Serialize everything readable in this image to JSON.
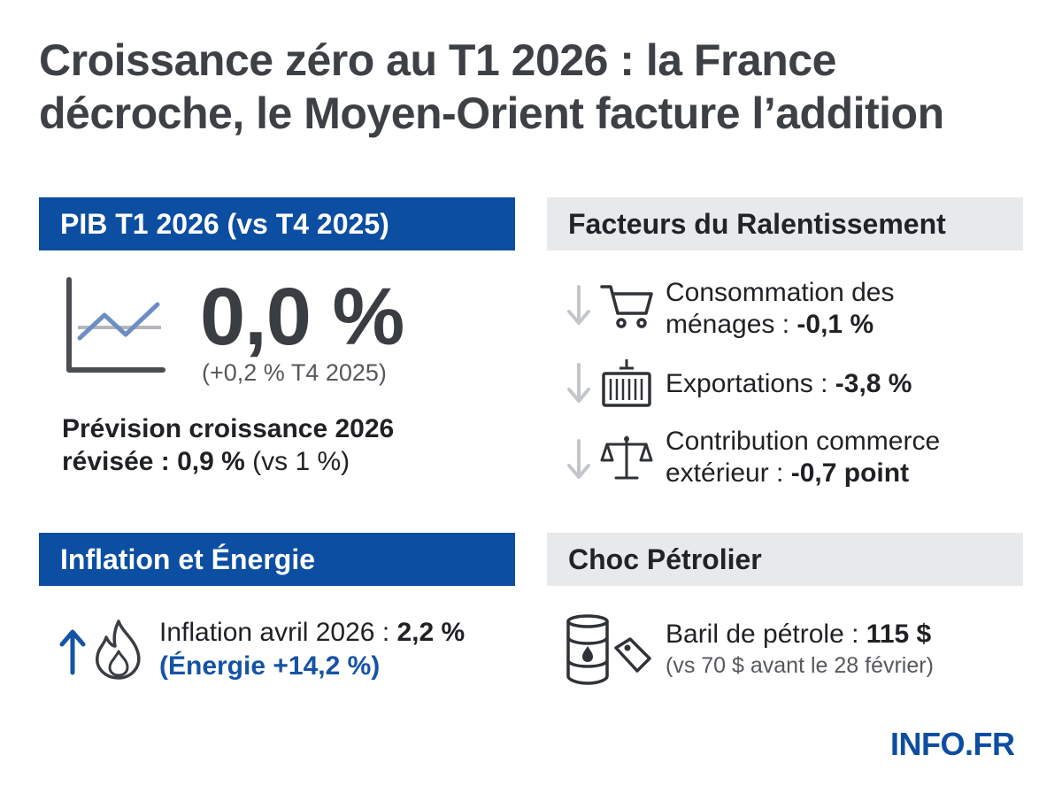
{
  "title": {
    "line1": "Croissance zéro au T1 2026 : la France",
    "line2": "décroche, le Moyen-Orient facture l’addition"
  },
  "pib": {
    "header": "PIB T1 2026 (vs T4 2025)",
    "value": "0,0 %",
    "previous": "(+0,2 % T4 2025)",
    "forecast_line1": "Prévision croissance 2026",
    "forecast_label": "révisée : ",
    "forecast_value": "0,9 %",
    "forecast_compare": " (vs 1 %)",
    "icon": "line-chart-icon"
  },
  "factors": {
    "header": "Facteurs du Ralentissement",
    "items": [
      {
        "icon": "shopping-cart-icon",
        "line1": "Consommation des",
        "label": "ménages : ",
        "value": "-0,1 %"
      },
      {
        "icon": "shipping-container-icon",
        "label": "Exportations : ",
        "value": "-3,8 %"
      },
      {
        "icon": "balance-scale-icon",
        "line1": "Contribution commerce",
        "label": "extérieur : ",
        "value": "-0,7 point"
      }
    ]
  },
  "inflation": {
    "header": "Inflation et Énergie",
    "label": "Inflation avril 2026 : ",
    "value": "2,2 %",
    "energy": "(Énergie +14,2 %)",
    "icon": "flame-icon"
  },
  "oil": {
    "header": "Choc Pétrolier",
    "label": "Baril de pétrole : ",
    "value": "115 $",
    "compare": "(vs 70 $ avant le 28 février)",
    "icon": "oil-barrel-icon"
  },
  "logo": "INFO.FR",
  "colors": {
    "primary_blue": "#0c4ea2",
    "header_gray": "#e8e9eb",
    "title_gray": "#3d4146"
  }
}
